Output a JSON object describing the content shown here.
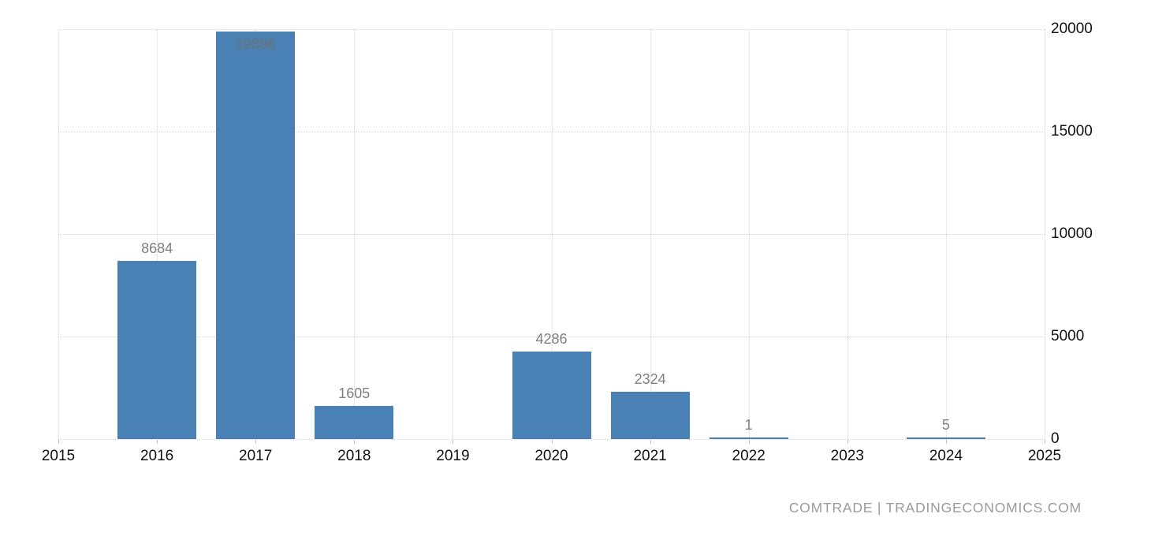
{
  "watermark": "COMTRADE | TRADINGECONOMICS.COM",
  "colors": {
    "bar": "#4a81b5",
    "grid": "#d6d6d6",
    "value_label": "#7f7f7f",
    "value_label_inside": "#6d7270",
    "axis_label": "#111111",
    "watermark": "#9b9b9b",
    "background": "#ffffff"
  },
  "chart_data": {
    "type": "bar",
    "title": "",
    "xlabel": "",
    "ylabel": "",
    "categories": [
      "2015",
      "2016",
      "2017",
      "2018",
      "2019",
      "2020",
      "2021",
      "2022",
      "2023",
      "2024",
      "2025"
    ],
    "values": [
      null,
      8684,
      19896,
      1605,
      null,
      4286,
      2324,
      1,
      null,
      5,
      null
    ],
    "data_labels": [
      "",
      "8684",
      "19896",
      "1605",
      "",
      "4286",
      "2324",
      "1",
      "",
      "5",
      ""
    ],
    "ylim": [
      0,
      20000
    ],
    "y_ticks": [
      0,
      5000,
      10000,
      15000,
      20000
    ],
    "y_tick_labels": [
      "0",
      "5000",
      "10000",
      "15000",
      "20000"
    ],
    "y_axis_side": "right",
    "grid": true,
    "grid_style": "dotted",
    "legend": false,
    "bar_color": "#4a81b5"
  }
}
